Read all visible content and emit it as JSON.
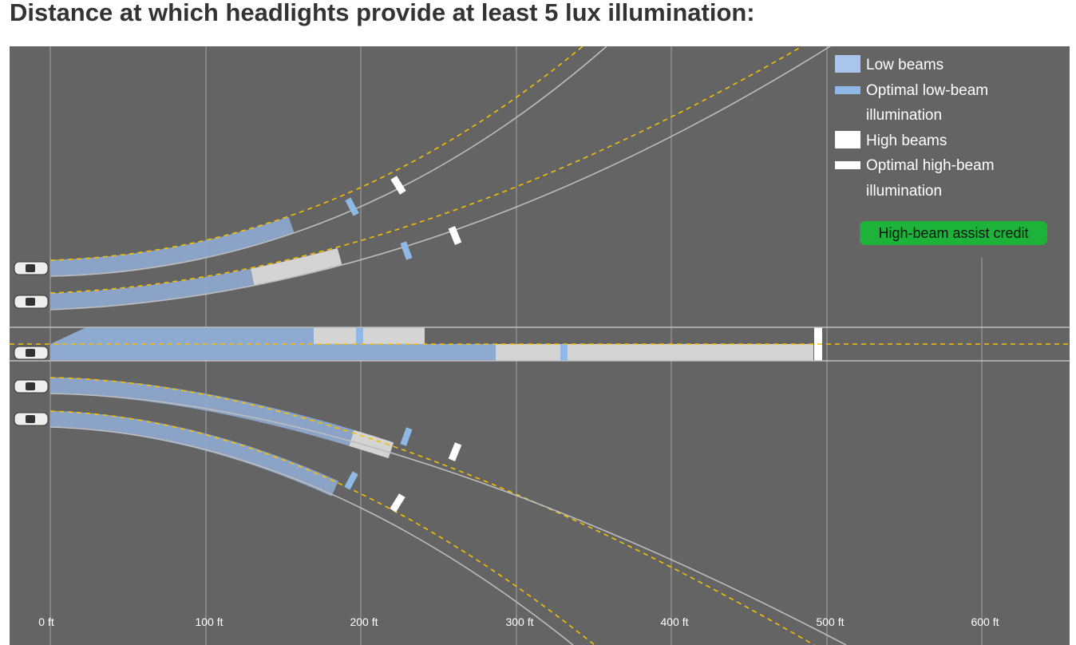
{
  "title": "Distance at which headlights provide at least 5 lux illumination:",
  "legend": [
    {
      "label": "Low beams"
    },
    {
      "label": "Optimal low-beam illumination"
    },
    {
      "label": "High beams"
    },
    {
      "label": "Optimal high-beam illumination"
    }
  ],
  "badge": "High-beam assist credit",
  "axis": {
    "ticks": [
      "0 ft",
      "100 ft",
      "200 ft",
      "300 ft",
      "400 ft",
      "500 ft",
      "600 ft"
    ]
  }
}
